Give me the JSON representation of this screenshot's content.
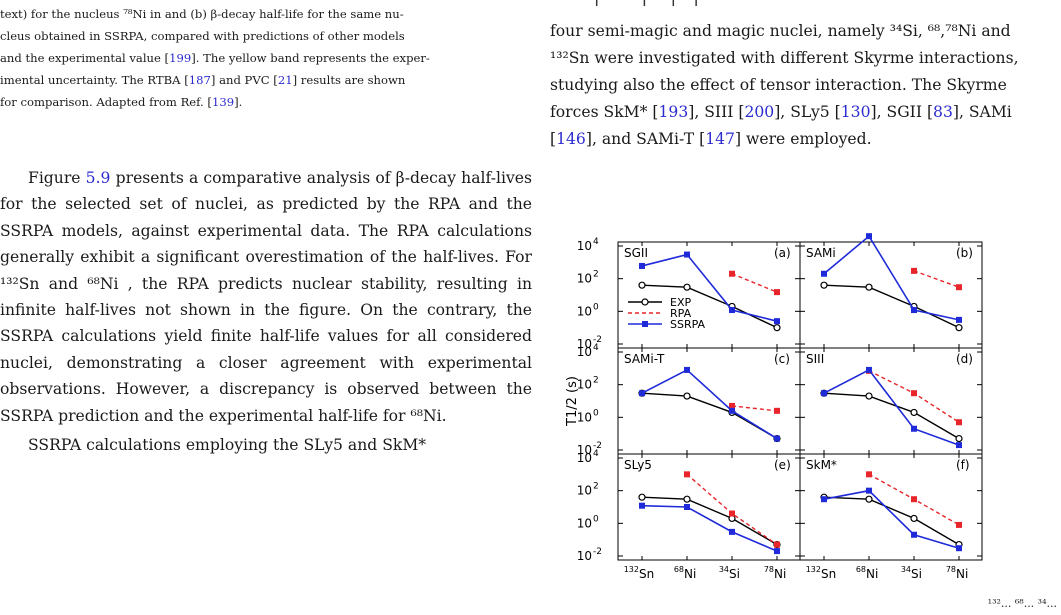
{
  "left_column": {
    "caption": {
      "line1": "text) for the nucleus ⁷⁸Ni in and (b) β-decay half-life for the same nu-",
      "line2": "cleus obtained in SSRPA, compared with predictions of other models",
      "line3a": "and the experimental value [",
      "ref_199": "199",
      "line3b": "]. The yellow band represents the exper-",
      "line4a": "imental uncertainty. The RTBA [",
      "ref_187": "187",
      "line4b": "] and PVC [",
      "ref_21": "21",
      "line4c": "] results are shown",
      "line5a": "for comparison. Adapted from Ref. [",
      "ref_139": "139",
      "line5b": "]."
    },
    "para1": {
      "t1": "Figure ",
      "fig_ref": "5.9",
      "t2": " presents a comparative analysis of β-decay half-lives for the selected set of nuclei, as predicted by the RPA and the SSRPA models, against experimental data. The RPA calculations generally exhibit a significant overestimation of the half-lives. For ¹³²Sn and ⁶⁸Ni , the RPA predicts nuclear stability, resulting in infinite half-lives not shown in the figure. On the contrary, the SSRPA calculations yield finite half-life values for all considered nuclei, demonstrating a closer agreement with experimental observations. However, a discrepancy is observed between the SSRPA prediction and the experimental half-life for ⁶⁸Ni."
    },
    "para2": "SSRPA calculations employing the SLy5 and SkM*"
  },
  "right_column": {
    "top_fragment": "..., ... [..., ...] ... [...], ...",
    "line1": "four semi-magic and magic nuclei, namely ³⁴Si, ⁶⁸,⁷⁸Ni and",
    "line2": "¹³²Sn were investigated with different Skyrme interactions,",
    "line3": "studying also the effect of tensor interaction. The Skyrme",
    "l4a": "forces SkM* [",
    "r193": "193",
    "l4b": "], SIII [",
    "r200": "200",
    "l4c": "], SLy5 [",
    "r130": "130",
    "l4d": "], SGII [",
    "r83": "83",
    "l4e": "], SAMi",
    "l5a": "[",
    "r146": "146",
    "l5b": "], and SAMi-T [",
    "r147": "147",
    "l5c": "] were employed."
  },
  "bottom_fragment": "¹³²... ⁶⁸... ³⁴...",
  "chart_data": {
    "type": "line",
    "ylabel": "T1/2 (s)",
    "log_y": true,
    "ylim": [
      0.01,
      10000
    ],
    "ytick_labels": [
      "10^-2",
      "10^0",
      "10^2",
      "10^4"
    ],
    "categories": [
      "132Sn",
      "68Ni",
      "34Si",
      "78Ni"
    ],
    "legend": [
      "EXP",
      "RPA",
      "SSRPA"
    ],
    "colors": {
      "EXP": "#000000",
      "RPA": "#e8252a",
      "SSRPA": "#1f2bd8"
    },
    "panels": [
      {
        "name": "SGII",
        "letter": "(a)",
        "series": [
          {
            "name": "EXP",
            "values": [
              40,
              30,
              2,
              0.1
            ]
          },
          {
            "name": "RPA",
            "values": [
              null,
              null,
              200,
              15
            ]
          },
          {
            "name": "SSRPA",
            "values": [
              600,
              3000,
              1.2,
              0.25
            ]
          }
        ]
      },
      {
        "name": "SAMi",
        "letter": "(b)",
        "series": [
          {
            "name": "EXP",
            "values": [
              40,
              30,
              2,
              0.1
            ]
          },
          {
            "name": "RPA",
            "values": [
              null,
              null,
              300,
              30
            ]
          },
          {
            "name": "SSRPA",
            "values": [
              200,
              40000,
              1.2,
              0.3
            ]
          }
        ]
      },
      {
        "name": "SAMi-T",
        "letter": "(c)",
        "series": [
          {
            "name": "EXP",
            "values": [
              30,
              20,
              2,
              0.05
            ]
          },
          {
            "name": "RPA",
            "values": [
              null,
              null,
              5,
              2.5
            ]
          },
          {
            "name": "SSRPA",
            "values": [
              30,
              800,
              2.5,
              0.05
            ]
          }
        ]
      },
      {
        "name": "SIII",
        "letter": "(d)",
        "series": [
          {
            "name": "EXP",
            "values": [
              30,
              20,
              2,
              0.05
            ]
          },
          {
            "name": "RPA",
            "values": [
              null,
              700,
              30,
              0.5
            ]
          },
          {
            "name": "SSRPA",
            "values": [
              30,
              800,
              0.2,
              0.02
            ]
          }
        ]
      },
      {
        "name": "SLy5",
        "letter": "(e)",
        "series": [
          {
            "name": "EXP",
            "values": [
              40,
              30,
              2,
              0.05
            ]
          },
          {
            "name": "RPA",
            "values": [
              null,
              1000,
              4,
              0.05
            ]
          },
          {
            "name": "SSRPA",
            "values": [
              12,
              10,
              0.3,
              0.02
            ]
          }
        ]
      },
      {
        "name": "SkM*",
        "letter": "(f)",
        "series": [
          {
            "name": "EXP",
            "values": [
              40,
              30,
              2,
              0.05
            ]
          },
          {
            "name": "RPA",
            "values": [
              null,
              1000,
              30,
              0.8
            ]
          },
          {
            "name": "SSRPA",
            "values": [
              30,
              100,
              0.2,
              0.03
            ]
          }
        ]
      }
    ]
  }
}
